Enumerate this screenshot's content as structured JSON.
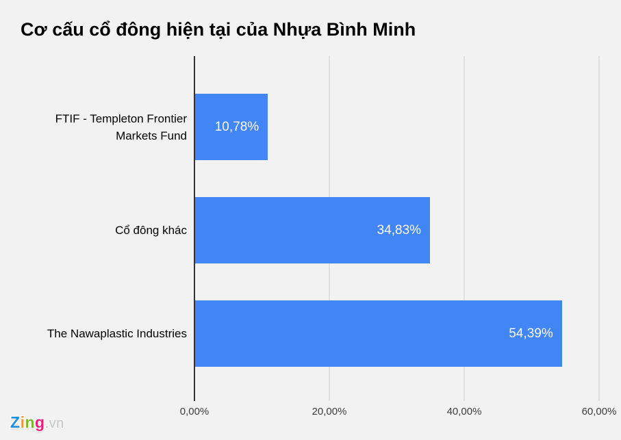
{
  "page": {
    "background_color": "#F2F2F2"
  },
  "chart_data": {
    "type": "bar",
    "orientation": "horizontal",
    "title": "Cơ cấu cổ đông hiện tại của Nhựa Bình Minh",
    "categories": [
      "FTIF - Templeton Frontier Markets Fund",
      "Cổ đông khác",
      "The Nawaplastic Industries"
    ],
    "values": [
      10.78,
      34.83,
      54.39
    ],
    "value_labels": [
      "10,78%",
      "34,83%",
      "54,39%"
    ],
    "x_ticks": [
      {
        "label": "0,00%",
        "value": 0
      },
      {
        "label": "20,00%",
        "value": 20
      },
      {
        "label": "40,00%",
        "value": 40
      },
      {
        "label": "60,00%",
        "value": 60
      }
    ],
    "xlim": [
      0,
      60
    ],
    "xlabel": "",
    "ylabel": "",
    "grid": true,
    "legend_position": "none",
    "bar_color": "#4285F4",
    "value_label_color": "#FFFFFF",
    "axis_line_color": "#333333",
    "gridline_color": "#CCCCCC"
  },
  "footer": {
    "logo": {
      "letters": [
        {
          "char": "Z",
          "color": "#1E8FE0"
        },
        {
          "char": "i",
          "color": "#F7941D"
        },
        {
          "char": "n",
          "color": "#7CB82F"
        },
        {
          "char": "g",
          "color": "#EC1E79"
        }
      ],
      "suffix": ".vn",
      "suffix_color": "#C6C6C6"
    }
  }
}
